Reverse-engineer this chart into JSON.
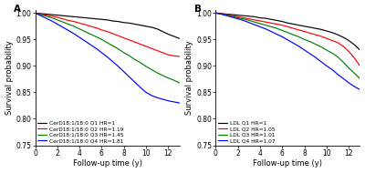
{
  "panel_A": {
    "label": "A",
    "xlabel": "Follow-up time (y)",
    "ylabel": "Survival probability",
    "xlim": [
      0,
      13
    ],
    "ylim": [
      0.75,
      1.005
    ],
    "yticks": [
      0.75,
      0.8,
      0.85,
      0.9,
      0.95,
      1.0
    ],
    "xticks": [
      0,
      2,
      4,
      6,
      8,
      10,
      12
    ],
    "curves": [
      {
        "label": "CerD18:1/18:0 Q1 HR=1",
        "color": "black",
        "x": [
          0,
          0.5,
          1,
          1.5,
          2,
          2.5,
          3,
          3.5,
          4,
          4.5,
          5,
          5.5,
          6,
          6.5,
          7,
          7.5,
          8,
          8.5,
          9,
          9.5,
          10,
          10.5,
          11,
          11.5,
          12,
          12.5,
          13
        ],
        "y": [
          1.0,
          0.999,
          0.998,
          0.997,
          0.996,
          0.995,
          0.994,
          0.993,
          0.992,
          0.991,
          0.99,
          0.989,
          0.988,
          0.987,
          0.985,
          0.984,
          0.982,
          0.981,
          0.979,
          0.977,
          0.975,
          0.973,
          0.97,
          0.965,
          0.96,
          0.956,
          0.952
        ]
      },
      {
        "label": "CerD18:1/18:0 Q2 HR=1.19",
        "color": "red",
        "x": [
          0,
          0.5,
          1,
          1.5,
          2,
          2.5,
          3,
          3.5,
          4,
          4.5,
          5,
          5.5,
          6,
          6.5,
          7,
          7.5,
          8,
          8.5,
          9,
          9.5,
          10,
          10.5,
          11,
          11.5,
          12,
          12.5,
          13
        ],
        "y": [
          1.0,
          0.998,
          0.996,
          0.994,
          0.992,
          0.989,
          0.986,
          0.984,
          0.981,
          0.978,
          0.975,
          0.972,
          0.968,
          0.965,
          0.961,
          0.957,
          0.953,
          0.949,
          0.945,
          0.941,
          0.937,
          0.933,
          0.929,
          0.925,
          0.921,
          0.919,
          0.918
        ]
      },
      {
        "label": "CerD18:1/18:0 Q3 HR=1.45",
        "color": "green",
        "x": [
          0,
          0.5,
          1,
          1.5,
          2,
          2.5,
          3,
          3.5,
          4,
          4.5,
          5,
          5.5,
          6,
          6.5,
          7,
          7.5,
          8,
          8.5,
          9,
          9.5,
          10,
          10.5,
          11,
          11.5,
          12,
          12.5,
          13
        ],
        "y": [
          1.0,
          0.997,
          0.994,
          0.991,
          0.987,
          0.983,
          0.979,
          0.975,
          0.97,
          0.965,
          0.96,
          0.955,
          0.95,
          0.944,
          0.938,
          0.932,
          0.925,
          0.919,
          0.912,
          0.906,
          0.899,
          0.893,
          0.887,
          0.882,
          0.877,
          0.873,
          0.868
        ]
      },
      {
        "label": "CerD18:1/18:0 Q4 HR=1.81",
        "color": "blue",
        "x": [
          0,
          0.5,
          1,
          1.5,
          2,
          2.5,
          3,
          3.5,
          4,
          4.5,
          5,
          5.5,
          6,
          6.5,
          7,
          7.5,
          8,
          8.5,
          9,
          9.5,
          10,
          10.5,
          11,
          11.5,
          12,
          12.5,
          13
        ],
        "y": [
          1.0,
          0.995,
          0.99,
          0.985,
          0.979,
          0.973,
          0.967,
          0.961,
          0.954,
          0.947,
          0.94,
          0.933,
          0.925,
          0.917,
          0.908,
          0.899,
          0.889,
          0.879,
          0.869,
          0.859,
          0.85,
          0.844,
          0.84,
          0.837,
          0.834,
          0.832,
          0.83
        ]
      }
    ]
  },
  "panel_B": {
    "label": "B",
    "xlabel": "Follow-up time (y)",
    "ylabel": "Survival probability",
    "xlim": [
      0,
      13
    ],
    "ylim": [
      0.75,
      1.005
    ],
    "yticks": [
      0.75,
      0.8,
      0.85,
      0.9,
      0.95,
      1.0
    ],
    "xticks": [
      0,
      2,
      4,
      6,
      8,
      10,
      12
    ],
    "curves": [
      {
        "label": "LDL Q1 HR=1",
        "color": "black",
        "x": [
          0,
          0.5,
          1,
          1.5,
          2,
          2.5,
          3,
          3.5,
          4,
          4.5,
          5,
          5.5,
          6,
          6.5,
          7,
          7.5,
          8,
          8.5,
          9,
          9.5,
          10,
          10.5,
          11,
          11.5,
          12,
          12.5,
          13
        ],
        "y": [
          1.0,
          0.999,
          0.998,
          0.997,
          0.996,
          0.995,
          0.994,
          0.993,
          0.991,
          0.99,
          0.988,
          0.986,
          0.984,
          0.981,
          0.979,
          0.977,
          0.975,
          0.973,
          0.971,
          0.969,
          0.966,
          0.963,
          0.959,
          0.954,
          0.948,
          0.94,
          0.93
        ]
      },
      {
        "label": "LDL Q2 HR=1.05",
        "color": "red",
        "x": [
          0,
          0.5,
          1,
          1.5,
          2,
          2.5,
          3,
          3.5,
          4,
          4.5,
          5,
          5.5,
          6,
          6.5,
          7,
          7.5,
          8,
          8.5,
          9,
          9.5,
          10,
          10.5,
          11,
          11.5,
          12,
          12.5,
          13
        ],
        "y": [
          1.0,
          0.999,
          0.997,
          0.995,
          0.993,
          0.991,
          0.989,
          0.987,
          0.985,
          0.983,
          0.981,
          0.979,
          0.977,
          0.974,
          0.971,
          0.968,
          0.965,
          0.962,
          0.959,
          0.956,
          0.952,
          0.948,
          0.944,
          0.937,
          0.927,
          0.915,
          0.9
        ]
      },
      {
        "label": "LDL Q3 HR=1.01",
        "color": "green",
        "x": [
          0,
          0.5,
          1,
          1.5,
          2,
          2.5,
          3,
          3.5,
          4,
          4.5,
          5,
          5.5,
          6,
          6.5,
          7,
          7.5,
          8,
          8.5,
          9,
          9.5,
          10,
          10.5,
          11,
          11.5,
          12,
          12.5,
          13
        ],
        "y": [
          1.0,
          0.998,
          0.996,
          0.994,
          0.991,
          0.989,
          0.986,
          0.983,
          0.98,
          0.977,
          0.974,
          0.971,
          0.967,
          0.963,
          0.959,
          0.955,
          0.95,
          0.946,
          0.941,
          0.936,
          0.93,
          0.924,
          0.917,
          0.907,
          0.896,
          0.886,
          0.876
        ]
      },
      {
        "label": "LDL Q4 HR=1.07",
        "color": "blue",
        "x": [
          0,
          0.5,
          1,
          1.5,
          2,
          2.5,
          3,
          3.5,
          4,
          4.5,
          5,
          5.5,
          6,
          6.5,
          7,
          7.5,
          8,
          8.5,
          9,
          9.5,
          10,
          10.5,
          11,
          11.5,
          12,
          12.5,
          13
        ],
        "y": [
          1.0,
          0.998,
          0.995,
          0.992,
          0.989,
          0.986,
          0.982,
          0.978,
          0.974,
          0.97,
          0.965,
          0.96,
          0.955,
          0.949,
          0.943,
          0.937,
          0.93,
          0.923,
          0.916,
          0.908,
          0.9,
          0.893,
          0.884,
          0.876,
          0.868,
          0.861,
          0.855
        ]
      }
    ]
  },
  "figsize": [
    4.0,
    1.9
  ],
  "dpi": 100,
  "legend_fontsize": 4.2,
  "tick_fontsize": 5.5,
  "label_fontsize": 6.0,
  "linewidth": 0.85,
  "panel_label_fontsize": 7.5
}
